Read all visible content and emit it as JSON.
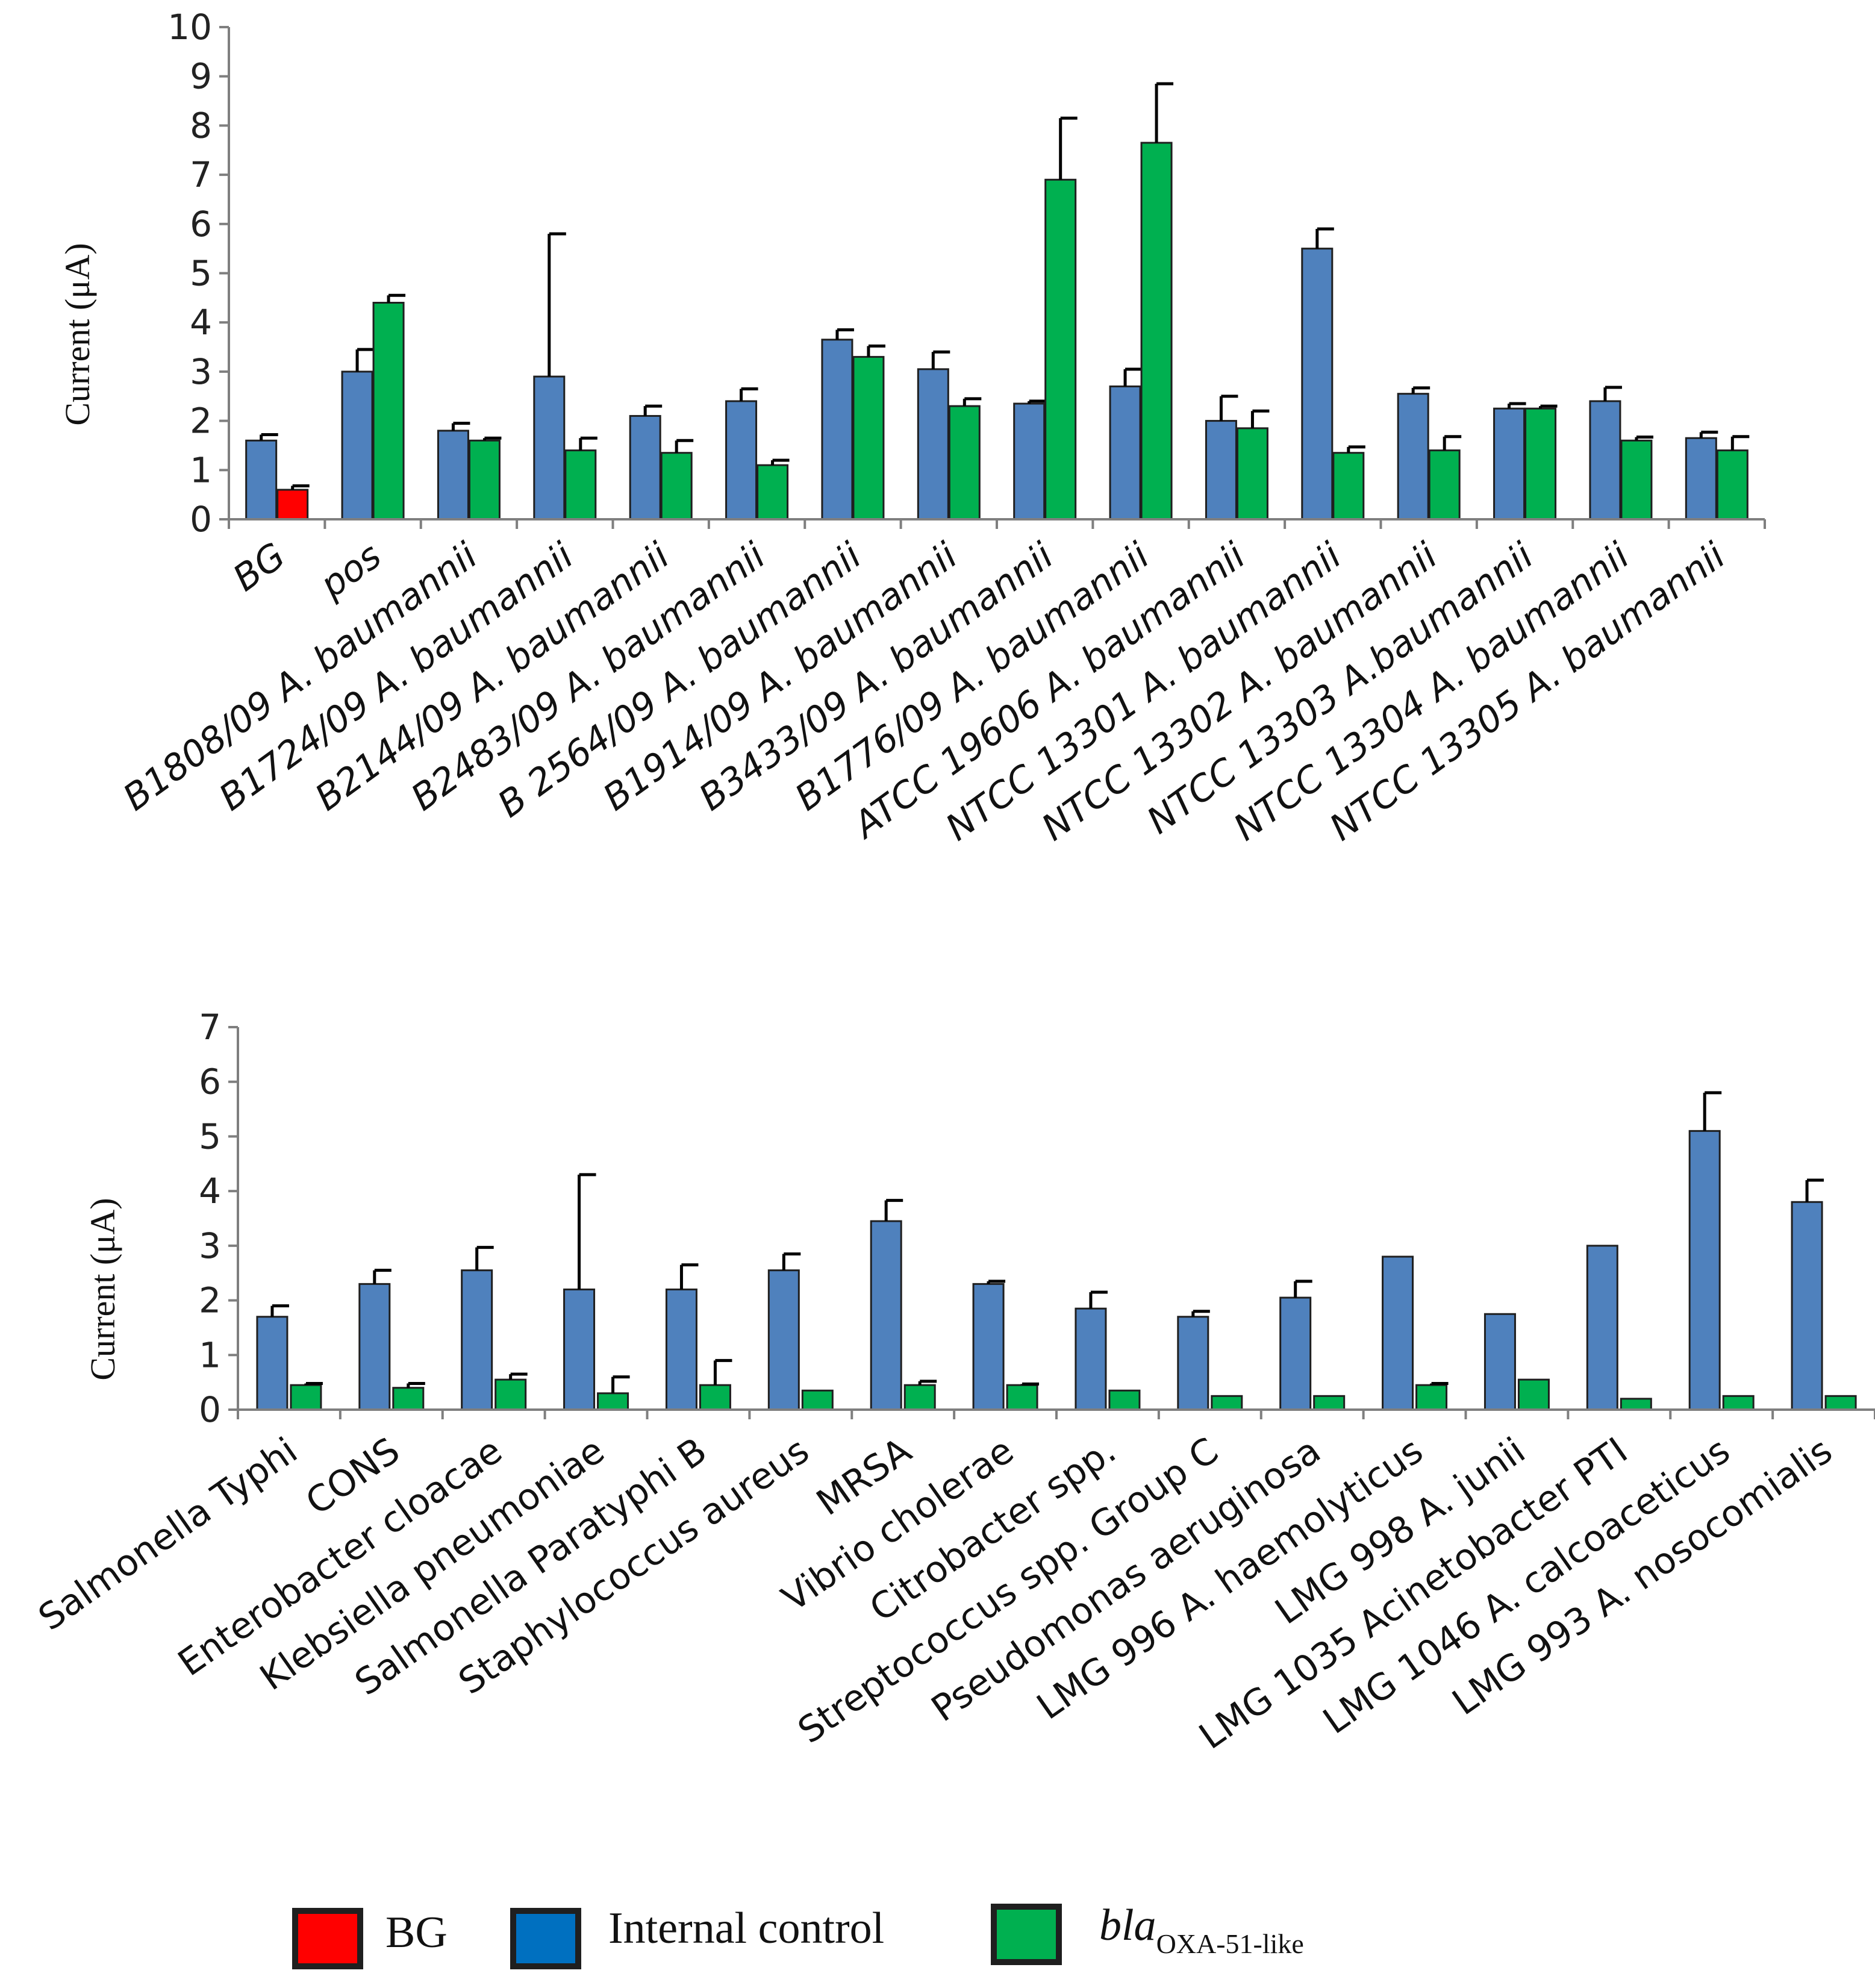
{
  "colors": {
    "bg": "#ff0000",
    "internal_control": "#4f81bd",
    "bla": "#00b050",
    "bar_edge": "#1f1f1f"
  },
  "chart_data": [
    {
      "type": "bar",
      "title": "",
      "xlabel": "",
      "ylabel": "Current (μA)",
      "ylim": [
        0,
        10
      ],
      "yticks": [
        0,
        1,
        2,
        3,
        4,
        5,
        6,
        7,
        8,
        9,
        10
      ],
      "italic_categories": true,
      "categories": [
        "BG",
        "pos",
        "B1808/09 A. baumannii",
        "B1724/09 A. baumannii",
        "B2144/09 A. baumannii",
        "B2483/09 A. baumannii",
        "B 2564/09 A. baumannii",
        "B1914/09 A. baumannii",
        "B3433/09 A. baumannii",
        "B1776/09 A. baumannii",
        "ATCC 19606 A. baumannii",
        "NTCC 13301 A. baumannii",
        "NTCC 13302 A. baumannii",
        "NTCC 13303 A.baumannii",
        "NTCC 13304 A. baumannii",
        "NTCC 13305 A. baumannii"
      ],
      "series": [
        {
          "name": "Internal control",
          "key": "internal_control",
          "values": [
            1.6,
            3.0,
            1.8,
            2.9,
            2.1,
            2.4,
            3.65,
            3.05,
            2.35,
            2.7,
            2.0,
            5.5,
            2.55,
            2.25,
            2.4,
            1.65
          ],
          "errors": [
            0.12,
            0.45,
            0.15,
            2.9,
            0.2,
            0.25,
            0.2,
            0.35,
            0.05,
            0.35,
            0.5,
            0.4,
            0.12,
            0.1,
            0.28,
            0.12
          ]
        },
        {
          "name": "bla OXA-51-like",
          "key": "bla",
          "values": [
            0.6,
            4.4,
            1.6,
            1.4,
            1.35,
            1.1,
            3.3,
            2.3,
            6.9,
            7.65,
            1.85,
            1.35,
            1.4,
            2.25,
            1.6,
            1.4
          ],
          "bg_first": true,
          "errors": [
            0.08,
            0.15,
            0.05,
            0.25,
            0.25,
            0.1,
            0.22,
            0.15,
            1.25,
            1.2,
            0.35,
            0.12,
            0.28,
            0.05,
            0.07,
            0.28
          ]
        }
      ]
    },
    {
      "type": "bar",
      "title": "",
      "xlabel": "",
      "ylabel": "Current (μA)",
      "ylim": [
        0,
        7
      ],
      "yticks": [
        0,
        1,
        2,
        3,
        4,
        5,
        6,
        7
      ],
      "italic_categories": false,
      "categories": [
        "Salmonella Typhi",
        "CONS",
        "Enterobacter cloacae",
        "Klebsiella pneumoniae",
        "Salmonella Paratyphi B",
        "Staphylococcus aureus",
        "MRSA",
        "Vibrio cholerae",
        "Citrobacter spp.",
        "Streptococcus spp. Group C",
        "Pseudomonas aeruginosa",
        "LMG 996 A. haemolyticus",
        "LMG 998 A. junii",
        "LMG 1035 Acinetobacter PTI",
        "LMG 1046 A. calcoaceticus",
        "LMG 993 A. nosocomialis"
      ],
      "series": [
        {
          "name": "Internal control",
          "key": "internal_control",
          "values": [
            1.7,
            2.3,
            2.55,
            2.2,
            2.2,
            2.55,
            3.45,
            2.3,
            1.85,
            1.7,
            2.05,
            2.8,
            1.75,
            3.0,
            5.1,
            3.8
          ],
          "errors": [
            0.2,
            0.25,
            0.42,
            2.1,
            0.45,
            0.3,
            0.38,
            0.05,
            0.3,
            0.1,
            0.3,
            0,
            0,
            0,
            0.7,
            0.4
          ]
        },
        {
          "name": "bla OXA-51-like",
          "key": "bla",
          "values": [
            0.45,
            0.4,
            0.55,
            0.3,
            0.45,
            0.35,
            0.45,
            0.45,
            0.35,
            0.25,
            0.25,
            0.45,
            0.55,
            0.2,
            0.25,
            0.25
          ],
          "errors": [
            0.03,
            0.08,
            0.1,
            0.3,
            0.45,
            0,
            0.07,
            0.02,
            0,
            0,
            0,
            0.03,
            0,
            0,
            0,
            0
          ]
        }
      ]
    }
  ],
  "legend": {
    "items": [
      {
        "key": "bg",
        "label": "BG"
      },
      {
        "key": "internal_control",
        "label": "Internal control"
      },
      {
        "key": "bla",
        "label_main": "bla",
        "label_sub": "OXA-51-like"
      }
    ]
  }
}
